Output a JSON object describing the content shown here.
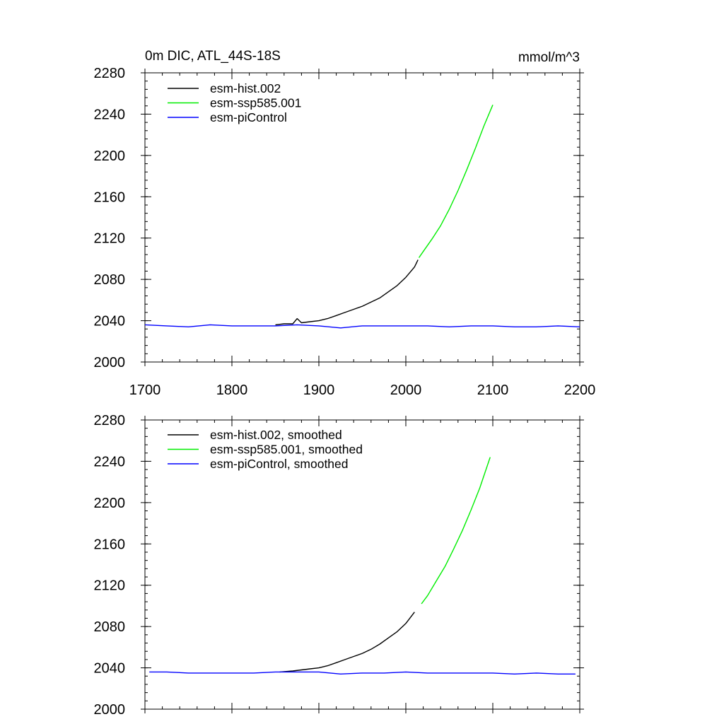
{
  "title": "0m DIC, ATL_44S-18S",
  "units": "mmol/m^3",
  "colors": {
    "esm-hist": "#000000",
    "esm-ssp585": "#00ee00",
    "esm-piControl": "#0000ff"
  },
  "chart_data": [
    {
      "type": "line",
      "title": "0m DIC, ATL_44S-18S",
      "units_label": "mmol/m^3",
      "xlim": [
        1700,
        2200
      ],
      "ylim": [
        2000,
        2280
      ],
      "x_ticks": [
        1700,
        1800,
        1900,
        2000,
        2100,
        2200
      ],
      "y_ticks": [
        2000,
        2040,
        2080,
        2120,
        2160,
        2200,
        2240,
        2280
      ],
      "x_tick_labels_shown": true,
      "legend_position": "top-left",
      "series": [
        {
          "name": "esm-hist.002",
          "color": "#000000",
          "x": [
            1850,
            1860,
            1870,
            1875,
            1880,
            1890,
            1900,
            1910,
            1920,
            1930,
            1940,
            1950,
            1960,
            1970,
            1980,
            1990,
            2000,
            2010,
            2014
          ],
          "y": [
            2036,
            2037,
            2037,
            2042,
            2038,
            2039,
            2040,
            2042,
            2045,
            2048,
            2051,
            2054,
            2058,
            2062,
            2068,
            2074,
            2082,
            2092,
            2099
          ]
        },
        {
          "name": "esm-ssp585.001",
          "color": "#00ee00",
          "x": [
            2015,
            2020,
            2030,
            2040,
            2050,
            2060,
            2070,
            2080,
            2090,
            2100
          ],
          "y": [
            2101,
            2107,
            2119,
            2132,
            2148,
            2166,
            2186,
            2207,
            2229,
            2249
          ]
        },
        {
          "name": "esm-piControl",
          "color": "#0000ff",
          "x": [
            1700,
            1725,
            1750,
            1775,
            1800,
            1825,
            1850,
            1875,
            1900,
            1925,
            1950,
            1975,
            2000,
            2025,
            2050,
            2075,
            2100,
            2125,
            2150,
            2175,
            2200
          ],
          "y": [
            2036,
            2035,
            2034,
            2036,
            2035,
            2035,
            2035,
            2036,
            2035,
            2033,
            2035,
            2035,
            2035,
            2035,
            2034,
            2035,
            2035,
            2034,
            2034,
            2035,
            2034
          ]
        }
      ]
    },
    {
      "type": "line",
      "xlim": [
        1700,
        2200
      ],
      "ylim": [
        2000,
        2280
      ],
      "x_ticks": [
        1700,
        1800,
        1900,
        2000,
        2100,
        2200
      ],
      "y_ticks": [
        2000,
        2040,
        2080,
        2120,
        2160,
        2200,
        2240,
        2280
      ],
      "x_tick_labels_shown": false,
      "legend_position": "top-left",
      "series": [
        {
          "name": "esm-hist.002, smoothed",
          "color": "#000000",
          "x": [
            1855,
            1870,
            1880,
            1890,
            1900,
            1910,
            1920,
            1930,
            1940,
            1950,
            1960,
            1970,
            1980,
            1990,
            2000,
            2010
          ],
          "y": [
            2036,
            2037,
            2038,
            2039,
            2040,
            2042,
            2045,
            2048,
            2051,
            2054,
            2058,
            2063,
            2069,
            2075,
            2083,
            2094
          ]
        },
        {
          "name": "esm-ssp585.001, smoothed",
          "color": "#00ee00",
          "x": [
            2018,
            2025,
            2035,
            2045,
            2055,
            2065,
            2075,
            2085,
            2097
          ],
          "y": [
            2102,
            2110,
            2124,
            2138,
            2155,
            2173,
            2193,
            2214,
            2244
          ]
        },
        {
          "name": "esm-piControl, smoothed",
          "color": "#0000ff",
          "x": [
            1705,
            1725,
            1750,
            1775,
            1800,
            1825,
            1850,
            1875,
            1900,
            1925,
            1950,
            1975,
            2000,
            2025,
            2050,
            2075,
            2100,
            2125,
            2150,
            2175,
            2195
          ],
          "y": [
            2036,
            2036,
            2035,
            2035,
            2035,
            2035,
            2036,
            2036,
            2036,
            2034,
            2035,
            2035,
            2036,
            2035,
            2035,
            2035,
            2035,
            2034,
            2035,
            2034,
            2034
          ]
        }
      ]
    }
  ]
}
